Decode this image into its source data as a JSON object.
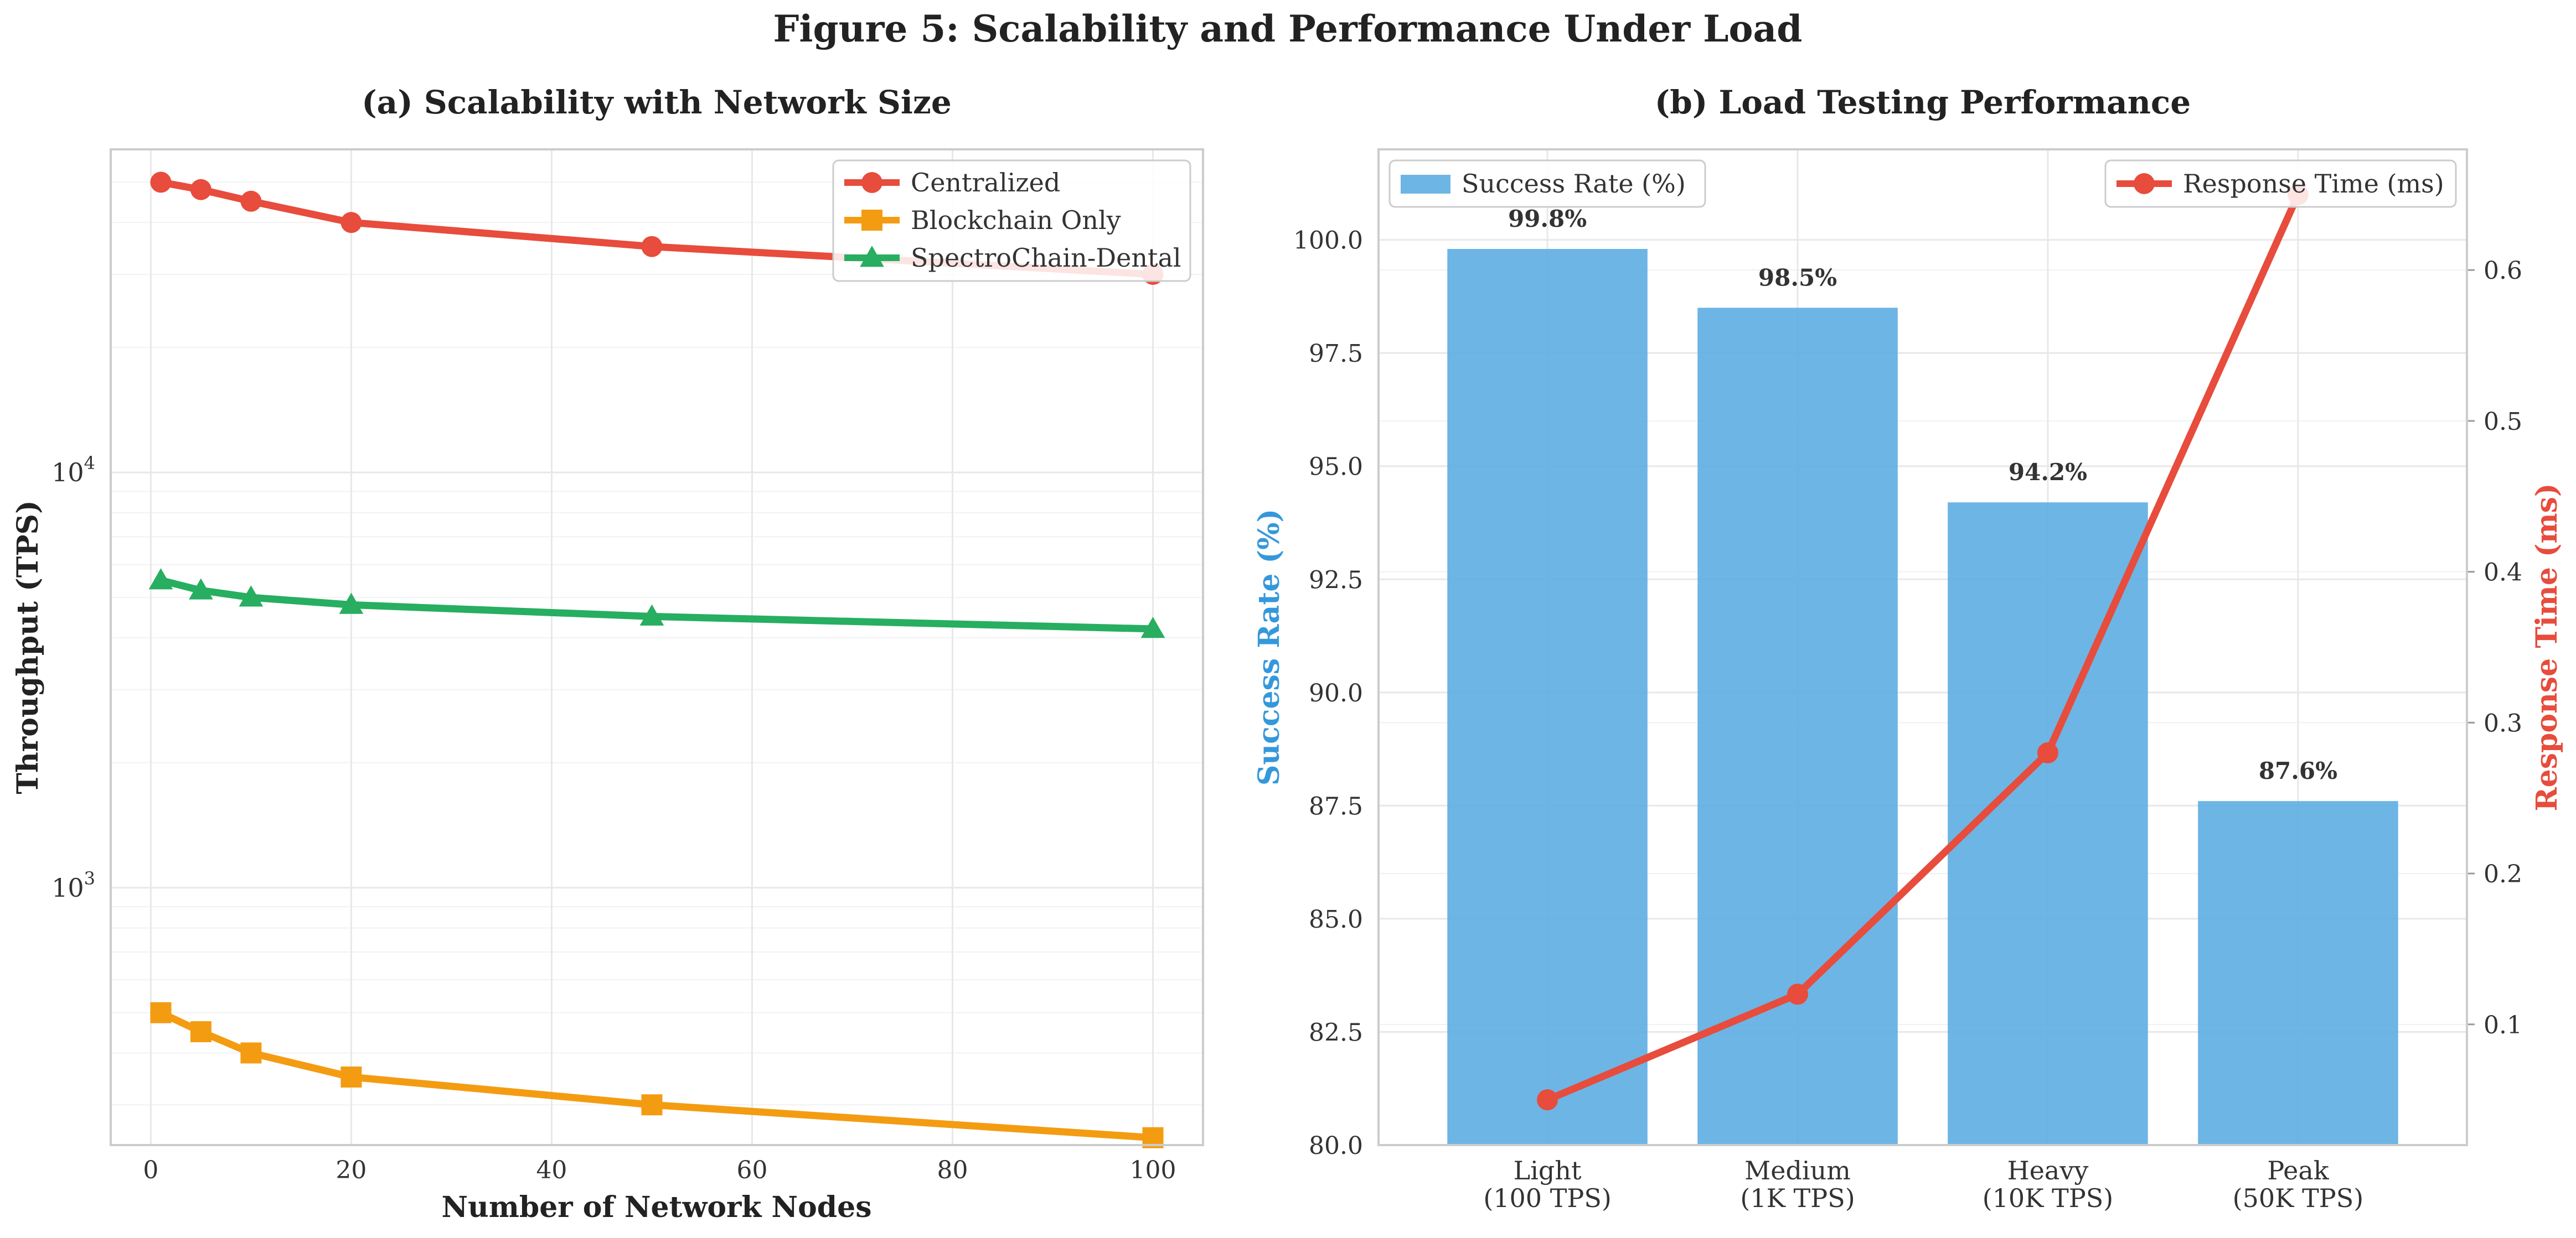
{
  "figure_title": "Figure 5: Scalability and Performance Under Load",
  "chart_data": [
    {
      "type": "line",
      "title": "(a) Scalability with Network Size",
      "xlabel": "Number of Network Nodes",
      "ylabel": "Throughput (TPS)",
      "yscale": "log",
      "xlim": [
        -4,
        105
      ],
      "ylim": [
        240,
        60000
      ],
      "x_ticks": [
        0,
        20,
        40,
        60,
        80,
        100
      ],
      "y_ticks": [
        {
          "value": 1000,
          "base": "10",
          "exp": "3"
        },
        {
          "value": 10000,
          "base": "10",
          "exp": "4"
        }
      ],
      "grid": true,
      "legend_position": "top-right",
      "x": [
        1,
        5,
        10,
        20,
        50,
        100
      ],
      "series": [
        {
          "name": "Centralized",
          "values": [
            50000,
            48000,
            45000,
            40000,
            35000,
            30000
          ],
          "color": "#e74c3c",
          "marker": "circle"
        },
        {
          "name": "Blockchain Only",
          "values": [
            500,
            450,
            400,
            350,
            300,
            250
          ],
          "color": "#f39c12",
          "marker": "square"
        },
        {
          "name": "SpectroChain-Dental",
          "values": [
            5500,
            5200,
            5000,
            4800,
            4500,
            4200
          ],
          "color": "#27ae60",
          "marker": "triangle"
        }
      ]
    },
    {
      "type": "bar",
      "title": "(b) Load Testing Performance",
      "xlabel": "",
      "ylabel": "Success Rate (%)",
      "y2label": "Response Time (ms)",
      "categories": [
        [
          "Light",
          "(100 TPS)"
        ],
        [
          "Medium",
          "(1K TPS)"
        ],
        [
          "Heavy",
          "(10K TPS)"
        ],
        [
          "Peak",
          "(50K TPS)"
        ]
      ],
      "ylim": [
        80,
        102
      ],
      "y2lim": [
        0.02,
        0.68
      ],
      "y_ticks": [
        "80.0",
        "82.5",
        "85.0",
        "87.5",
        "90.0",
        "92.5",
        "95.0",
        "97.5",
        "100.0"
      ],
      "y2_ticks": [
        "0.1",
        "0.2",
        "0.3",
        "0.4",
        "0.5",
        "0.6"
      ],
      "grid": true,
      "legend_left": "top-left",
      "legend_right": "top-right",
      "series": [
        {
          "name": "Success Rate (%)",
          "values": [
            99.8,
            98.5,
            94.2,
            87.6
          ],
          "labels": [
            "99.8%",
            "98.5%",
            "94.2%",
            "87.6%"
          ],
          "color": "#5dade2"
        },
        {
          "name": "Response Time (ms)",
          "values": [
            0.05,
            0.12,
            0.28,
            0.65
          ],
          "color": "#e74c3c"
        }
      ]
    }
  ]
}
